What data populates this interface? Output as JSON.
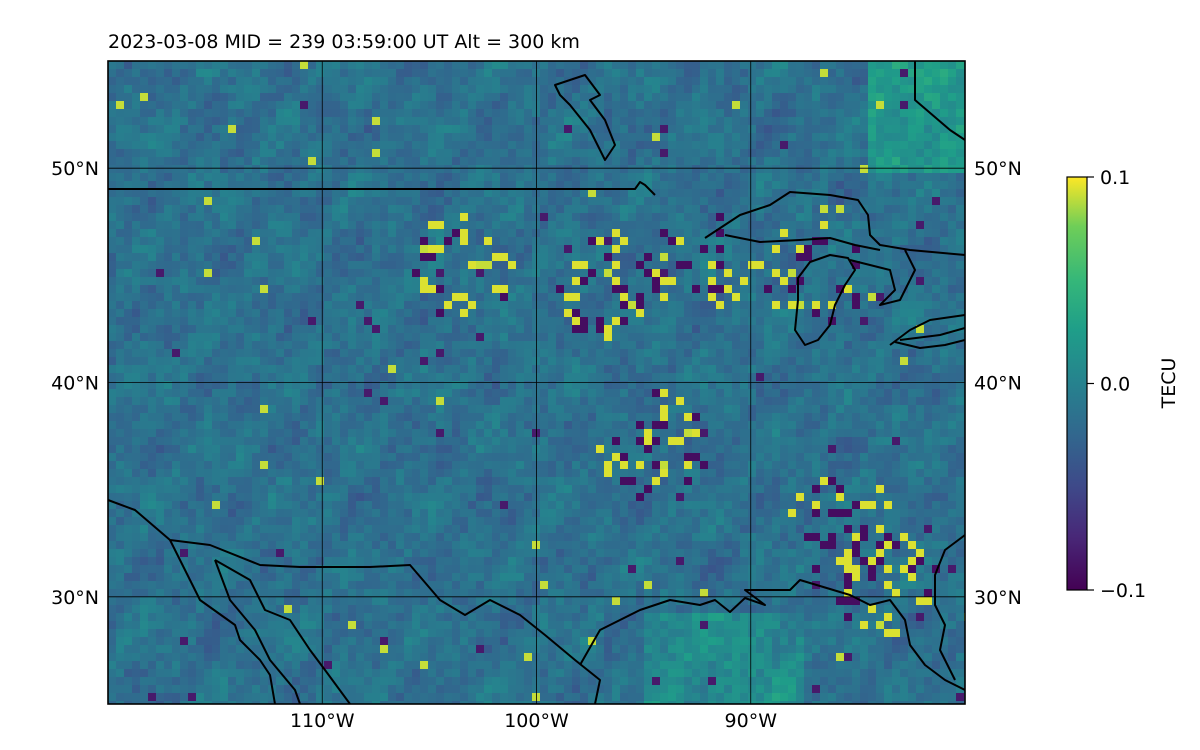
{
  "chart_data": {
    "type": "heatmap",
    "title": "2023-03-08  MID = 239    03:59:00  UT  Alt = 300 km",
    "map_extent": {
      "lon_range": [
        -120,
        -80
      ],
      "lat_range": [
        25,
        55
      ]
    },
    "lon_ticks": [
      -110,
      -100,
      -90
    ],
    "lat_ticks": [
      30,
      40,
      50
    ],
    "lon_tick_labels": [
      "110°W",
      "100°W",
      "90°W"
    ],
    "lat_tick_labels_left": [
      "30°N",
      "40°N",
      "50°N"
    ],
    "lat_tick_labels_right": [
      "30°N",
      "40°N",
      "50°N"
    ],
    "grid": true,
    "colormap": "viridis",
    "colorbar": {
      "label": "TECU",
      "vmin": -0.1,
      "vmax": 0.1,
      "ticks": [
        -0.1,
        0.0,
        0.1
      ],
      "tick_labels": [
        "−0.1",
        "0.0",
        "0.1"
      ]
    },
    "features": [
      "coastlines",
      "country-borders"
    ]
  }
}
